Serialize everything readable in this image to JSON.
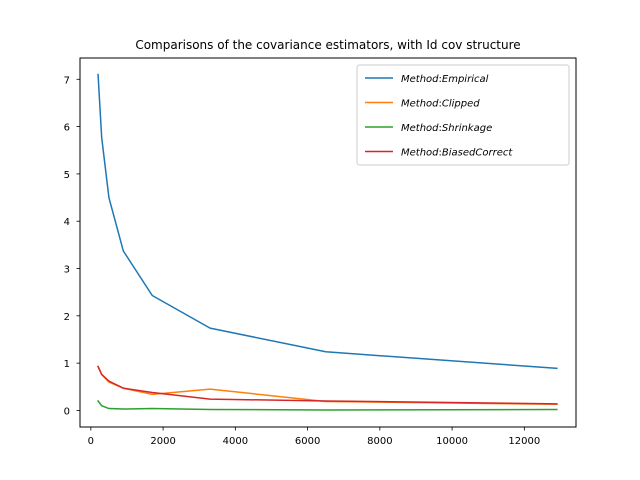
{
  "chart_data": {
    "type": "line",
    "title": "Comparisons of the covariance estimators, with Id cov structure",
    "xlabel": "",
    "ylabel": "",
    "xlim": [
      -300,
      13430
    ],
    "ylim": [
      -0.35,
      7.45
    ],
    "xticks": [
      0,
      2000,
      4000,
      6000,
      8000,
      10000,
      12000
    ],
    "xtick_labels": [
      "0",
      "2000",
      "4000",
      "6000",
      "8000",
      "10000",
      "12000"
    ],
    "yticks": [
      0,
      1,
      2,
      3,
      4,
      5,
      6,
      7
    ],
    "ytick_labels": [
      "0",
      "1",
      "2",
      "3",
      "4",
      "5",
      "6",
      "7"
    ],
    "grid": false,
    "legend_position": "top-right",
    "x": [
      200,
      300,
      500,
      900,
      1700,
      3300,
      6500,
      12900
    ],
    "series": [
      {
        "name": "Method: Empirical",
        "label_parts": [
          "Method",
          "Empirical"
        ],
        "color": "#1f77b4",
        "values": [
          7.1,
          5.77,
          4.5,
          3.37,
          2.43,
          1.74,
          1.24,
          0.89
        ]
      },
      {
        "name": "Method: Clipped",
        "label_parts": [
          "Method",
          "Clipped"
        ],
        "color": "#ff7f0e",
        "values": [
          0.93,
          0.76,
          0.6,
          0.47,
          0.34,
          0.45,
          0.19,
          0.13
        ]
      },
      {
        "name": "Method: Shrinkage",
        "label_parts": [
          "Method",
          "Shrinkage"
        ],
        "color": "#2ca02c",
        "values": [
          0.2,
          0.1,
          0.04,
          0.03,
          0.04,
          0.02,
          0.01,
          0.02
        ]
      },
      {
        "name": "Method: BiasedCorrect",
        "label_parts": [
          "Method",
          "BiasedCorrect"
        ],
        "color": "#d62728",
        "values": [
          0.93,
          0.76,
          0.62,
          0.47,
          0.38,
          0.24,
          0.2,
          0.14
        ]
      }
    ]
  }
}
